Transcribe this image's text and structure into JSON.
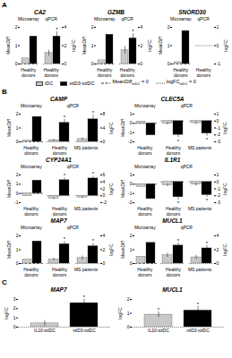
{
  "chart_data": [
    {
      "type": "bar",
      "panel": "A",
      "title": "CA2",
      "groups": [
        {
          "label": "Microarray",
          "axis_label": "MeanDiff",
          "axis": "y",
          "ylim": [
            0,
            2
          ],
          "yticks": [
            0,
            1,
            2
          ],
          "categories": [
            "Healthy donors"
          ],
          "series": [
            {
              "name": "iDC",
              "color": "#c8c8c8",
              "values": [
                0.3
              ]
            },
            {
              "name": "vitD3-tolDC",
              "color": "#000000",
              "values": [
                1.5
              ]
            }
          ]
        },
        {
          "label": "qPCR",
          "axis_label": "logFC",
          "axis": "y2",
          "ylim": [
            0,
            4
          ],
          "yticks": [
            0,
            2,
            4
          ],
          "categories": [
            "Healthy donors"
          ],
          "series": [
            {
              "name": "iDC",
              "color": "#c8c8c8",
              "values": [
                1.2
              ],
              "errors": [
                0.3
              ],
              "significance": [
                null
              ]
            },
            {
              "name": "vitD3-tolDC",
              "color": "#000000",
              "values": [
                3.0
              ],
              "errors": [
                0.5
              ],
              "significance": [
                "*"
              ]
            }
          ]
        }
      ]
    },
    {
      "type": "bar",
      "panel": "A",
      "title": "GZMB",
      "groups": [
        {
          "label": "Microarray",
          "axis_label": "MeanDiff",
          "axis": "y",
          "ylim": [
            0,
            2
          ],
          "yticks": [
            0,
            1,
            2
          ],
          "categories": [
            "Healthy donors"
          ],
          "series": [
            {
              "name": "iDC",
              "color": "#c8c8c8",
              "values": [
                0.2
              ]
            },
            {
              "name": "vitD3-tolDC",
              "color": "#000000",
              "values": [
                1.6
              ]
            }
          ]
        },
        {
          "label": "qPCR",
          "axis_label": "logFC",
          "axis": "y2",
          "ylim": [
            0,
            4
          ],
          "yticks": [
            0,
            2,
            4
          ],
          "categories": [
            "Healthy donors"
          ],
          "series": [
            {
              "name": "iDC",
              "color": "#c8c8c8",
              "values": [
                1.5
              ],
              "errors": [
                0.4
              ],
              "significance": [
                null
              ]
            },
            {
              "name": "vitD3-tolDC",
              "color": "#000000",
              "values": [
                2.8
              ],
              "errors": [
                0.5
              ],
              "significance": [
                "*"
              ]
            }
          ]
        }
      ]
    },
    {
      "type": "bar",
      "panel": "A",
      "title": "SNORD30",
      "groups": [
        {
          "label": "Microarray",
          "axis_label": "MeanDiff",
          "axis": "y",
          "ylim": [
            0,
            2
          ],
          "yticks": [
            0,
            1,
            2
          ],
          "categories": [
            "Healthy donors"
          ],
          "series": [
            {
              "name": "iDC",
              "color": "#c8c8c8",
              "values": [
                0.1
              ]
            },
            {
              "name": "vitD3-tolDC",
              "color": "#000000",
              "values": [
                1.8
              ]
            }
          ]
        },
        {
          "label": "qPCR",
          "axis_label": "logFC",
          "axis": "y2",
          "ylim": [
            -1,
            1
          ],
          "yticks": [
            -1,
            0,
            1
          ],
          "categories": [
            "Healthy donors"
          ],
          "series": [
            {
              "name": "iDC",
              "color": "#c8c8c8",
              "values": [
                null
              ]
            },
            {
              "name": "vitD3-tolDC",
              "color": "#000000",
              "values": [
                null
              ]
            }
          ]
        }
      ]
    },
    {
      "type": "bar",
      "panel": "B",
      "title": "CAMP",
      "groups": [
        {
          "label": "Microarray",
          "axis_label": "MeanDiff",
          "axis": "y",
          "ylim": [
            0,
            2
          ],
          "yticks": [
            0,
            1,
            2
          ],
          "categories": [
            "Healthy donors"
          ],
          "series": [
            {
              "name": "iDC",
              "color": "#c8c8c8",
              "values": [
                0.1
              ]
            },
            {
              "name": "vitD3-tolDC",
              "color": "#000000",
              "values": [
                1.8
              ]
            }
          ]
        },
        {
          "label": "qPCR",
          "axis_label": "logFC",
          "axis": "y2",
          "ylim": [
            0,
            8
          ],
          "yticks": [
            0,
            4,
            8
          ],
          "categories": [
            "Healthy donors",
            "MS patients"
          ],
          "series": [
            {
              "name": "iDC",
              "color": "#c8c8c8",
              "values": [
                0.5,
                0.8
              ],
              "errors": [
                0.3,
                0.4
              ],
              "significance": [
                null,
                null
              ]
            },
            {
              "name": "vitD3-tolDC",
              "color": "#000000",
              "values": [
                5.5,
                6.5
              ],
              "errors": [
                1.0,
                1.2
              ],
              "significance": [
                "*",
                "*"
              ]
            }
          ]
        }
      ]
    },
    {
      "type": "bar",
      "panel": "B",
      "title": "CLEC5A",
      "groups": [
        {
          "label": "Microarray",
          "axis_label": "MeanDiff",
          "axis": "y",
          "ylim": [
            -2,
            1
          ],
          "yticks": [
            -2,
            -1,
            0,
            1
          ],
          "categories": [
            "Healthy donors"
          ],
          "series": [
            {
              "name": "iDC",
              "color": "#c8c8c8",
              "values": [
                0.2
              ]
            },
            {
              "name": "vitD3-tolDC",
              "color": "#000000",
              "values": [
                -1.3
              ]
            }
          ]
        },
        {
          "label": "qPCR",
          "axis_label": "logFC",
          "axis": "y2",
          "ylim": [
            -3,
            1
          ],
          "yticks": [
            -3,
            -2,
            -1,
            0,
            1
          ],
          "categories": [
            "Healthy donors",
            "MS patients"
          ],
          "series": [
            {
              "name": "iDC",
              "color": "#c8c8c8",
              "values": [
                -0.4,
                -0.3
              ],
              "errors": [
                0.2,
                0.2
              ],
              "significance": [
                null,
                null
              ]
            },
            {
              "name": "vitD3-tolDC",
              "color": "#000000",
              "values": [
                -2.0,
                -1.8
              ],
              "errors": [
                0.4,
                0.4
              ],
              "significance": [
                "*",
                "*"
              ]
            }
          ]
        }
      ]
    },
    {
      "type": "bar",
      "panel": "B",
      "title": "CYP24A1",
      "groups": [
        {
          "label": "Microarray",
          "axis_label": "MeanDiff",
          "axis": "y",
          "ylim": [
            -1,
            2
          ],
          "yticks": [
            -1,
            0,
            1,
            2
          ],
          "categories": [
            "Healthy donors"
          ],
          "series": [
            {
              "name": "iDC",
              "color": "#c8c8c8",
              "values": [
                -0.3
              ]
            },
            {
              "name": "vitD3-tolDC",
              "color": "#000000",
              "values": [
                1.4
              ]
            }
          ]
        },
        {
          "label": "qPCR",
          "axis_label": "logFC",
          "axis": "y2",
          "ylim": [
            -2,
            6
          ],
          "yticks": [
            -2,
            0,
            2,
            4,
            6
          ],
          "categories": [
            "Healthy donors",
            "MS patients"
          ],
          "series": [
            {
              "name": "iDC",
              "color": "#c8c8c8",
              "values": [
                -0.8,
                -0.5
              ],
              "errors": [
                0.3,
                0.3
              ],
              "significance": [
                null,
                null
              ]
            },
            {
              "name": "vitD3-tolDC",
              "color": "#000000",
              "values": [
                4.5,
                5.0
              ],
              "errors": [
                0.6,
                0.6
              ],
              "significance": [
                "*",
                "*"
              ]
            }
          ]
        }
      ]
    },
    {
      "type": "bar",
      "panel": "B",
      "title": "IL1R1",
      "groups": [
        {
          "label": "Microarray",
          "axis_label": "MeanDiff",
          "axis": "y",
          "ylim": [
            -2,
            1
          ],
          "yticks": [
            -2,
            -1,
            0,
            1
          ],
          "categories": [
            "Healthy donors"
          ],
          "series": [
            {
              "name": "iDC",
              "color": "#c8c8c8",
              "values": [
                -0.3
              ]
            },
            {
              "name": "vitD3-tolDC",
              "color": "#000000",
              "values": [
                -1.6
              ]
            }
          ]
        },
        {
          "label": "qPCR",
          "axis_label": "logFC",
          "axis": "y2",
          "ylim": [
            -3,
            1
          ],
          "yticks": [
            -3,
            -2,
            -1,
            0,
            1
          ],
          "categories": [
            "Healthy donors",
            "MS patients"
          ],
          "series": [
            {
              "name": "iDC",
              "color": "#c8c8c8",
              "values": [
                -0.5,
                -0.4
              ],
              "errors": [
                0.2,
                0.2
              ],
              "significance": [
                null,
                null
              ]
            },
            {
              "name": "vitD3-tolDC",
              "color": "#000000",
              "values": [
                -2.2,
                -1.9
              ],
              "errors": [
                0.4,
                0.3
              ],
              "significance": [
                "*",
                "*"
              ]
            }
          ]
        }
      ]
    },
    {
      "type": "bar",
      "panel": "B",
      "title": "MAP7",
      "groups": [
        {
          "label": "Microarray",
          "axis_label": "MeanDiff",
          "axis": "y",
          "ylim": [
            0,
            2
          ],
          "yticks": [
            0,
            1,
            2
          ],
          "categories": [
            "Healthy donors"
          ],
          "series": [
            {
              "name": "iDC",
              "color": "#c8c8c8",
              "values": [
                0.3
              ]
            },
            {
              "name": "vitD3-tolDC",
              "color": "#000000",
              "values": [
                1.6
              ]
            }
          ]
        },
        {
          "label": "qPCR",
          "axis_label": "logFC",
          "axis": "y2",
          "ylim": [
            0,
            4
          ],
          "yticks": [
            0,
            2,
            4
          ],
          "categories": [
            "Healthy donors",
            "MS patients"
          ],
          "series": [
            {
              "name": "iDC",
              "color": "#c8c8c8",
              "values": [
                0.6,
                0.8
              ],
              "errors": [
                0.2,
                0.3
              ],
              "significance": [
                null,
                null
              ]
            },
            {
              "name": "vitD3-tolDC",
              "color": "#000000",
              "values": [
                2.8,
                2.5
              ],
              "errors": [
                0.4,
                0.4
              ],
              "significance": [
                "*",
                "*"
              ]
            }
          ]
        }
      ]
    },
    {
      "type": "bar",
      "panel": "B",
      "title": "MUCL1",
      "groups": [
        {
          "label": "Microarray",
          "axis_label": "MeanDiff",
          "axis": "y",
          "ylim": [
            0,
            2
          ],
          "yticks": [
            0,
            1,
            2
          ],
          "categories": [
            "Healthy donors"
          ],
          "series": [
            {
              "name": "iDC",
              "color": "#c8c8c8",
              "values": [
                0.5
              ]
            },
            {
              "name": "vitD3-tolDC",
              "color": "#000000",
              "values": [
                1.5
              ]
            }
          ]
        },
        {
          "label": "qPCR",
          "axis_label": "logFC",
          "axis": "y2",
          "ylim": [
            0,
            4
          ],
          "yticks": [
            0,
            2,
            4
          ],
          "categories": [
            "Healthy donors",
            "MS patients"
          ],
          "series": [
            {
              "name": "iDC",
              "color": "#c8c8c8",
              "values": [
                1.2,
                0.9
              ],
              "errors": [
                0.3,
                0.3
              ],
              "significance": [
                null,
                null
              ]
            },
            {
              "name": "vitD3-tolDC",
              "color": "#000000",
              "values": [
                2.6,
                2.2
              ],
              "errors": [
                0.4,
                0.4
              ],
              "significance": [
                "*",
                "*"
              ]
            }
          ]
        }
      ]
    },
    {
      "type": "bar",
      "panel": "C",
      "title": "MAP7",
      "y_label": "logFC",
      "ylim": [
        0,
        3
      ],
      "yticks": [
        0,
        1,
        2,
        3
      ],
      "categories": [
        "IL10-tolDC",
        "vitD3-tolDC"
      ],
      "values": [
        0.4,
        2.6
      ],
      "errors": [
        0.3,
        0.4
      ],
      "significance": [
        null,
        "*"
      ],
      "colors": [
        "#c8c8c8",
        "#000000"
      ]
    },
    {
      "type": "bar",
      "panel": "C",
      "title": "MUCL1",
      "y_label": "logFC",
      "ylim": [
        0,
        2
      ],
      "yticks": [
        0,
        1,
        2
      ],
      "categories": [
        "IL10-tolDC",
        "vitD3-tolDC"
      ],
      "values": [
        0.9,
        1.2
      ],
      "errors": [
        0.2,
        0.3
      ],
      "significance": [
        "*",
        "*"
      ],
      "colors": [
        "#c8c8c8",
        "#000000"
      ]
    }
  ],
  "key": {
    "series": [
      {
        "name": "iDC",
        "color": "#c8c8c8"
      },
      {
        "name": "vitD3-tolDC",
        "color": "#000000"
      }
    ],
    "reference_lines": [
      {
        "label": "MeanDiff",
        "subscript": "mDC",
        "relation": "=",
        "value": 0,
        "line_style": "dashed"
      },
      {
        "label": "logFC",
        "subscript": "mDC",
        "relation": "=",
        "value": 0,
        "line_style": "dotted"
      }
    ]
  }
}
